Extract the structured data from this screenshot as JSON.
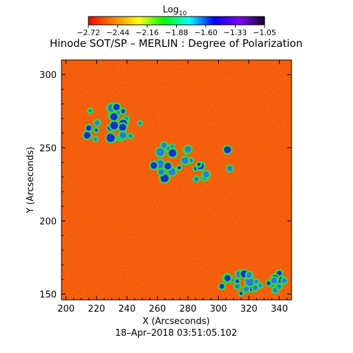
{
  "colorbar": {
    "label_base": "Log",
    "label_sub": "10",
    "ticks": [
      "−2.72",
      "−2.44",
      "−2.16",
      "−1.88",
      "−1.60",
      "−1.33",
      "−1.05"
    ],
    "range": [
      -2.72,
      -1.05
    ],
    "colors": [
      "#ff0000",
      "#ff8000",
      "#ffff00",
      "#00ff00",
      "#00ffff",
      "#0000ff",
      "#8000ff",
      "#1a0030"
    ]
  },
  "chart_data": {
    "type": "heatmap",
    "title": "Hinode SOT/SP – MERLIN : Degree of Polarization",
    "xlabel": "X (Arcseconds)",
    "ylabel": "Y (Arcseconds)",
    "xlim": [
      197,
      348
    ],
    "ylim": [
      146,
      310
    ],
    "xticks": [
      200,
      220,
      240,
      260,
      280,
      300,
      320,
      340
    ],
    "yticks": [
      150,
      200,
      250,
      300
    ],
    "background_level": "mostly -2.72 to -2.44 (red/orange)",
    "high_polarization_regions": [
      {
        "x": [
          255,
          310
        ],
        "y": [
          228,
          252
        ]
      },
      {
        "x": [
          213,
          250
        ],
        "y": [
          255,
          278
        ]
      },
      {
        "x": [
          300,
          345
        ],
        "y": [
          150,
          165
        ]
      }
    ]
  },
  "footer": {
    "timestamp": "18–Apr–2018 03:51:05.102"
  }
}
